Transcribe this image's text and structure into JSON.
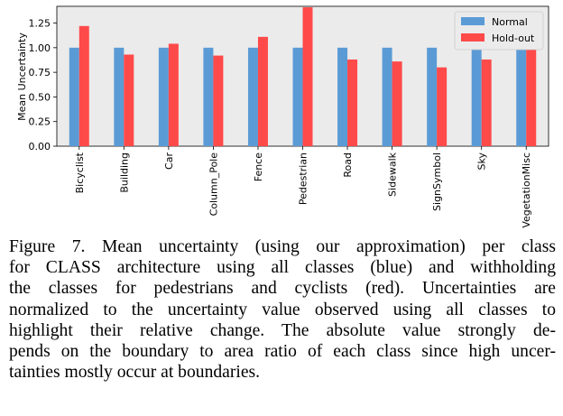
{
  "chart_data": {
    "type": "bar",
    "categories": [
      "Bicyclist",
      "Building",
      "Car",
      "Column_Pole",
      "Fence",
      "Pedestrian",
      "Road",
      "Sidewalk",
      "SignSymbol",
      "Sky",
      "VegetationMisc"
    ],
    "series": [
      {
        "name": "Normal",
        "color": "#5b9bd5",
        "values": [
          1.0,
          1.0,
          1.0,
          1.0,
          1.0,
          1.0,
          1.0,
          1.0,
          1.0,
          1.0,
          1.0
        ]
      },
      {
        "name": "Hold-out",
        "color": "#ff4a4a",
        "values": [
          1.22,
          0.93,
          1.04,
          0.92,
          1.11,
          1.41,
          0.88,
          0.86,
          0.8,
          0.88,
          1.05
        ]
      }
    ],
    "title": "",
    "xlabel": "",
    "ylabel": "Mean Uncertainty",
    "ylim": [
      0,
      1.42
    ],
    "yticks": [
      "0.00",
      "0.25",
      "0.50",
      "0.75",
      "1.00",
      "1.25"
    ],
    "legend_position": "top-right",
    "background": "#ebebeb"
  },
  "caption": {
    "lines": [
      "Figure 7. Mean uncertainty (using our approximation) per class",
      "for CLASS architecture using all classes (blue) and withholding",
      "the classes for pedestrians and cyclists (red).  Uncertainties are",
      "normalized to the uncertainty value observed using all classes to",
      "highlight their relative change.  The absolute value strongly de-",
      "pends on the boundary to area ratio of each class since high uncer-",
      "tainties mostly occur at boundaries."
    ]
  }
}
